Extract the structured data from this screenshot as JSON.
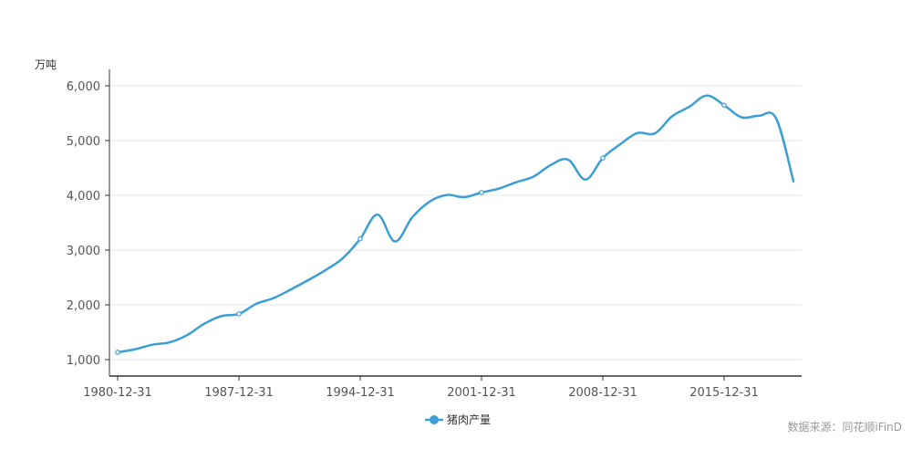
{
  "chart_data": {
    "type": "line",
    "y_unit": "万吨",
    "ylim": [
      700,
      6300
    ],
    "y_ticks": [
      1000,
      2000,
      3000,
      4000,
      5000,
      6000
    ],
    "y_tick_labels": [
      "1,000",
      "2,000",
      "3,000",
      "4,000",
      "5,000",
      "6,000"
    ],
    "x_tick_labels": [
      "1980-12-31",
      "1987-12-31",
      "1994-12-31",
      "2001-12-31",
      "2008-12-31",
      "2015-12-31"
    ],
    "grid": true,
    "legend_position": "bottom-center",
    "series": [
      {
        "name": "猪肉产量",
        "color": "#3a9fd5",
        "x": [
          1980,
          1981,
          1982,
          1983,
          1984,
          1985,
          1986,
          1987,
          1988,
          1989,
          1990,
          1991,
          1992,
          1993,
          1994,
          1995,
          1996,
          1997,
          1998,
          1999,
          2000,
          2001,
          2002,
          2003,
          2004,
          2005,
          2006,
          2007,
          2008,
          2009,
          2010,
          2011,
          2012,
          2013,
          2014,
          2015,
          2016,
          2017,
          2018,
          2019
        ],
        "values": [
          1134,
          1188,
          1272,
          1316,
          1445,
          1655,
          1796,
          1835,
          2018,
          2123,
          2281,
          2452,
          2635,
          2854,
          3205,
          3648,
          3158,
          3596,
          3884,
          4006,
          3966,
          4052,
          4123,
          4239,
          4341,
          4555,
          4650,
          4288,
          4682,
          4932,
          5138,
          5131,
          5443,
          5619,
          5821,
          5645,
          5425,
          5452,
          5404,
          4255
        ]
      }
    ]
  },
  "legend": {
    "label": "猪肉产量"
  },
  "source": "数据来源：同花顺iFinD"
}
